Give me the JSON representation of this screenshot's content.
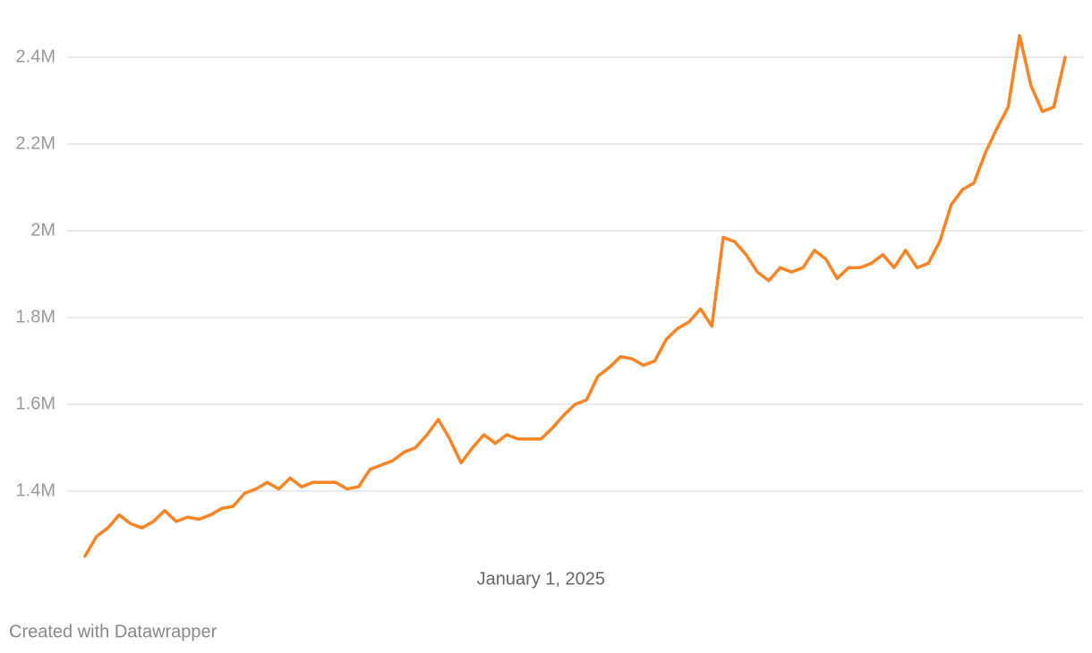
{
  "chart_data": {
    "type": "line",
    "categories": [
      null,
      null,
      null,
      null,
      null,
      null,
      null,
      null,
      null,
      null,
      null,
      null,
      null,
      null,
      null,
      null,
      null,
      null,
      null,
      null,
      null,
      null,
      null,
      null,
      null,
      null,
      null,
      null,
      null,
      null,
      null,
      null,
      null,
      null,
      null,
      null,
      null,
      null,
      null,
      null,
      "January 1, 2025",
      null,
      null,
      null,
      null,
      null,
      null,
      null,
      null,
      null,
      null,
      null,
      null,
      null,
      null,
      null,
      null,
      null,
      null,
      null,
      null,
      null,
      null,
      null,
      null,
      null,
      null,
      null,
      null,
      null,
      null,
      null,
      null,
      null,
      null,
      null,
      null,
      null,
      null,
      null,
      null,
      null,
      null,
      null,
      null,
      null,
      null
    ],
    "series": [
      {
        "color": "#fa8323",
        "values": [
          1250000,
          1295000,
          1315000,
          1345000,
          1325000,
          1315000,
          1330000,
          1355000,
          1330000,
          1340000,
          1335000,
          1345000,
          1360000,
          1365000,
          1395000,
          1405000,
          1420000,
          1405000,
          1430000,
          1410000,
          1420000,
          1420000,
          1420000,
          1405000,
          1410000,
          1450000,
          1460000,
          1470000,
          1490000,
          1500000,
          1530000,
          1565000,
          1520000,
          1465000,
          1500000,
          1530000,
          1510000,
          1530000,
          1520000,
          1520000,
          1520000,
          1545000,
          1575000,
          1600000,
          1610000,
          1665000,
          1685000,
          1710000,
          1705000,
          1690000,
          1700000,
          1750000,
          1775000,
          1790000,
          1820000,
          1780000,
          1985000,
          1975000,
          1945000,
          1905000,
          1885000,
          1915000,
          1905000,
          1915000,
          1955000,
          1935000,
          1890000,
          1915000,
          1915000,
          1925000,
          1945000,
          1915000,
          1955000,
          1915000,
          1925000,
          1975000,
          2060000,
          2095000,
          2110000,
          2180000,
          2235000,
          2285000,
          2450000,
          2335000,
          2275000,
          2285000,
          2400000
        ]
      }
    ],
    "ylim": [
      1240000,
      2500000
    ],
    "yticks": [
      {
        "value": 1400000,
        "label": "1.4M"
      },
      {
        "value": 1600000,
        "label": "1.6M"
      },
      {
        "value": 1800000,
        "label": "1.8M"
      },
      {
        "value": 2000000,
        "label": "2M"
      },
      {
        "value": 2200000,
        "label": "2.2M"
      },
      {
        "value": 2400000,
        "label": "2.4M"
      }
    ],
    "grid": true,
    "footer": "Created with Datawrapper"
  }
}
